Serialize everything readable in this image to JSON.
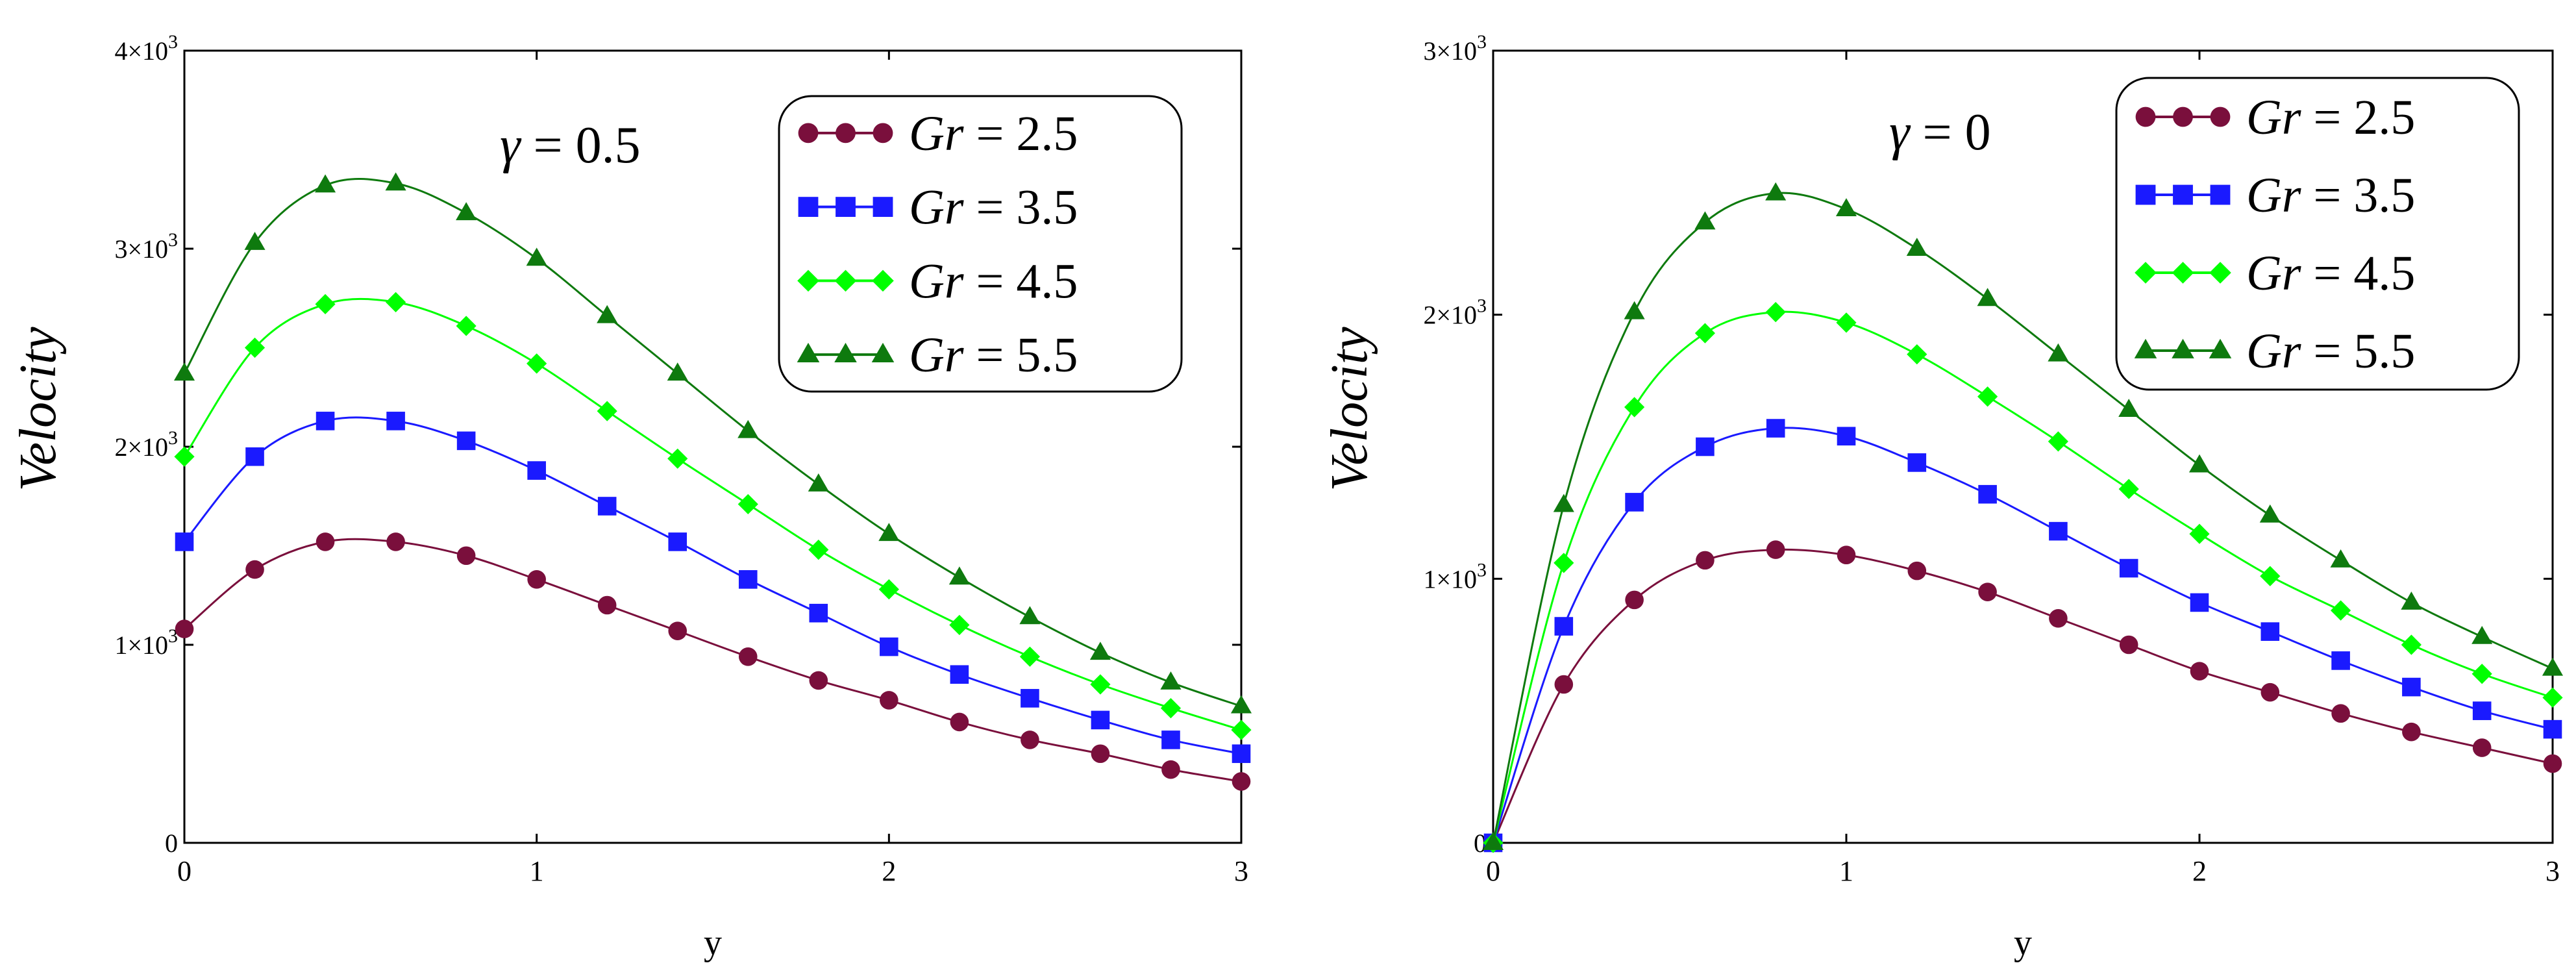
{
  "chart_data": [
    {
      "type": "line",
      "annotation": {
        "symbol": "γ",
        "equals": "=",
        "value": "0.5"
      },
      "xlabel": "y",
      "ylabel": "Velocity",
      "xlim": [
        0,
        3
      ],
      "ylim": [
        0,
        4000
      ],
      "x_ticks": [
        {
          "value": 0,
          "label": "0"
        },
        {
          "value": 1,
          "label": "1"
        },
        {
          "value": 2,
          "label": "2"
        },
        {
          "value": 3,
          "label": "3"
        }
      ],
      "y_ticks": [
        {
          "value": 0,
          "label": "0"
        },
        {
          "value": 1000,
          "mant": "1×10",
          "exp": "3"
        },
        {
          "value": 2000,
          "mant": "2×10",
          "exp": "3"
        },
        {
          "value": 3000,
          "mant": "3×10",
          "exp": "3"
        },
        {
          "value": 4000,
          "mant": "4×10",
          "exp": "3"
        }
      ],
      "legend_position": "top-right",
      "x": [
        0,
        0.2,
        0.4,
        0.6,
        0.8,
        1.0,
        1.2,
        1.4,
        1.6,
        1.8,
        2.0,
        2.2,
        2.4,
        2.6,
        2.8,
        3.0
      ],
      "series": [
        {
          "name": "Gr",
          "value": "2.5",
          "color": "#7a0f3c",
          "marker": "circle",
          "values": [
            1080,
            1380,
            1520,
            1520,
            1450,
            1330,
            1200,
            1070,
            940,
            820,
            720,
            610,
            520,
            450,
            370,
            310
          ]
        },
        {
          "name": "Gr",
          "value": "3.5",
          "color": "#1a1aff",
          "marker": "square",
          "values": [
            1520,
            1950,
            2130,
            2130,
            2030,
            1880,
            1700,
            1520,
            1330,
            1160,
            990,
            850,
            730,
            620,
            520,
            450
          ]
        },
        {
          "name": "Gr",
          "value": "4.5",
          "color": "#00ff00",
          "marker": "diamond",
          "values": [
            1950,
            2500,
            2720,
            2730,
            2610,
            2420,
            2180,
            1940,
            1710,
            1480,
            1280,
            1100,
            940,
            800,
            680,
            570
          ]
        },
        {
          "name": "Gr",
          "value": "5.5",
          "color": "#0e7a0e",
          "marker": "triangle",
          "values": [
            2370,
            3030,
            3320,
            3330,
            3180,
            2950,
            2660,
            2370,
            2080,
            1810,
            1560,
            1340,
            1140,
            960,
            810,
            690
          ]
        }
      ]
    },
    {
      "type": "line",
      "annotation": {
        "symbol": "γ",
        "equals": "=",
        "value": "0"
      },
      "xlabel": "y",
      "ylabel": "Velocity",
      "xlim": [
        0,
        3
      ],
      "ylim": [
        0,
        3000
      ],
      "x_ticks": [
        {
          "value": 0,
          "label": "0"
        },
        {
          "value": 1,
          "label": "1"
        },
        {
          "value": 2,
          "label": "2"
        },
        {
          "value": 3,
          "label": "3"
        }
      ],
      "y_ticks": [
        {
          "value": 0,
          "label": "0"
        },
        {
          "value": 1000,
          "mant": "1×10",
          "exp": "3"
        },
        {
          "value": 2000,
          "mant": "2×10",
          "exp": "3"
        },
        {
          "value": 3000,
          "mant": "3×10",
          "exp": "3"
        }
      ],
      "legend_position": "top-right",
      "x": [
        0,
        0.2,
        0.4,
        0.6,
        0.8,
        1.0,
        1.2,
        1.4,
        1.6,
        1.8,
        2.0,
        2.2,
        2.4,
        2.6,
        2.8,
        3.0
      ],
      "series": [
        {
          "name": "Gr",
          "value": "2.5",
          "color": "#7a0f3c",
          "marker": "circle",
          "values": [
            0,
            600,
            920,
            1070,
            1110,
            1090,
            1030,
            950,
            850,
            750,
            650,
            570,
            490,
            420,
            360,
            300
          ]
        },
        {
          "name": "Gr",
          "value": "3.5",
          "color": "#1a1aff",
          "marker": "square",
          "values": [
            0,
            820,
            1290,
            1500,
            1570,
            1540,
            1440,
            1320,
            1180,
            1040,
            910,
            800,
            690,
            590,
            500,
            430
          ]
        },
        {
          "name": "Gr",
          "value": "4.5",
          "color": "#00ff00",
          "marker": "diamond",
          "values": [
            0,
            1060,
            1650,
            1930,
            2010,
            1970,
            1850,
            1690,
            1520,
            1340,
            1170,
            1010,
            880,
            750,
            640,
            550
          ]
        },
        {
          "name": "Gr",
          "value": "5.5",
          "color": "#0e7a0e",
          "marker": "triangle",
          "values": [
            0,
            1280,
            2010,
            2350,
            2460,
            2400,
            2250,
            2060,
            1850,
            1640,
            1430,
            1240,
            1070,
            910,
            780,
            660
          ]
        }
      ]
    }
  ]
}
